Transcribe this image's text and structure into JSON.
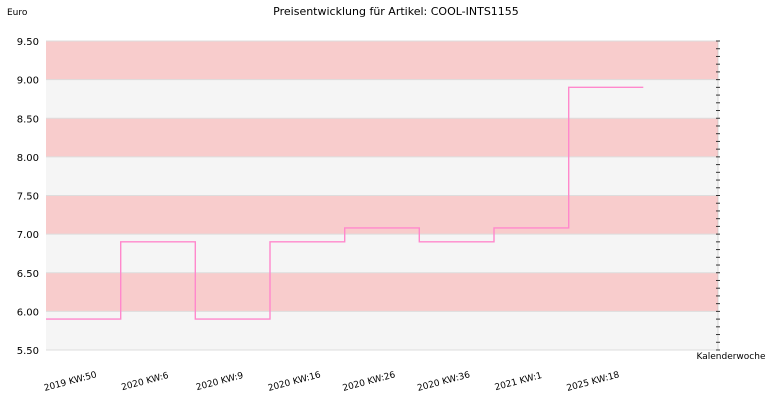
{
  "chart_data": {
    "type": "line",
    "step": true,
    "title": "Preisentwicklung für Artikel: COOL-INTS1155",
    "ylabel": "Euro",
    "xlabel": "Kalenderwoche",
    "ylim": [
      5.5,
      9.5
    ],
    "yticks": [
      "5.50",
      "6.00",
      "6.50",
      "7.00",
      "7.50",
      "8.00",
      "8.50",
      "9.00",
      "9.50"
    ],
    "categories": [
      "2019 KW:50",
      "2020 KW:6",
      "2020 KW:9",
      "2020 KW:16",
      "2020 KW:26",
      "2020 KW:36",
      "2021 KW:1",
      "2025 KW:18"
    ],
    "series": [
      {
        "values": [
          5.9,
          6.9,
          5.9,
          6.9,
          7.08,
          6.9,
          7.08,
          8.9
        ]
      }
    ],
    "grid": true,
    "colors": {
      "line": "#ff88cc",
      "band_a": "#f8cccc",
      "band_b": "#f5f5f5",
      "grid": "#dddddd"
    }
  }
}
